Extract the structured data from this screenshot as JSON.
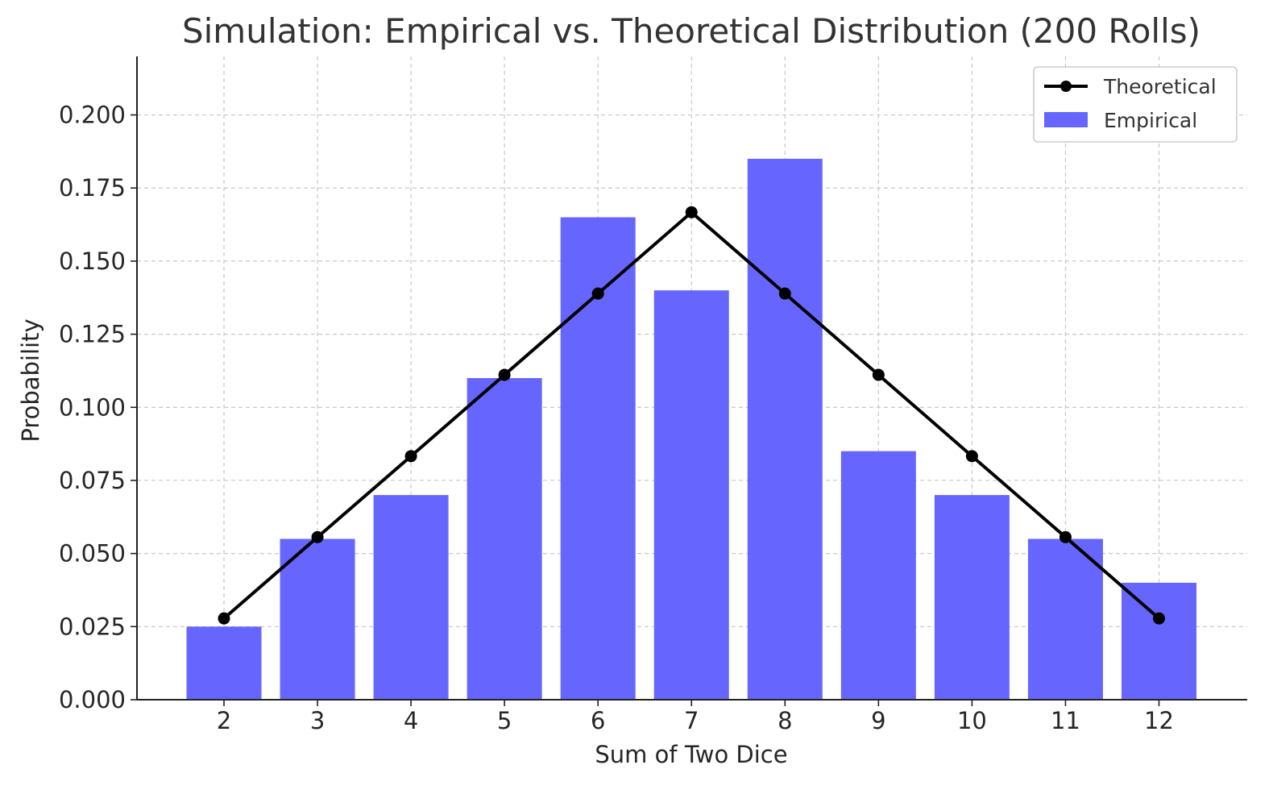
{
  "chart_data": {
    "type": "bar",
    "title": "Simulation: Empirical vs. Theoretical Distribution (200 Rolls)",
    "xlabel": "Sum of Two Dice",
    "ylabel": "Probability",
    "categories": [
      "2",
      "3",
      "4",
      "5",
      "6",
      "7",
      "8",
      "9",
      "10",
      "11",
      "12"
    ],
    "ylim": [
      0,
      0.22
    ],
    "yticks": [
      "0.000",
      "0.025",
      "0.050",
      "0.075",
      "0.100",
      "0.125",
      "0.150",
      "0.175",
      "0.200"
    ],
    "grid": true,
    "legend_position": "top-right",
    "series": [
      {
        "name": "Theoretical",
        "kind": "line",
        "marker": "circle",
        "color": "#000000",
        "values": [
          0.0278,
          0.0556,
          0.0833,
          0.1111,
          0.1389,
          0.1667,
          0.1389,
          0.1111,
          0.0833,
          0.0556,
          0.0278
        ]
      },
      {
        "name": "Empirical",
        "kind": "bar",
        "color": "#6666ff",
        "values": [
          0.025,
          0.055,
          0.07,
          0.11,
          0.165,
          0.14,
          0.185,
          0.085,
          0.07,
          0.055,
          0.04
        ]
      }
    ]
  }
}
